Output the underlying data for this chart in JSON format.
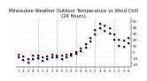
{
  "title": "Milwaukee Weather Outdoor Temperature vs Wind Chill\n(24 Hours)",
  "title_fontsize": 3.8,
  "background_color": "#ffffff",
  "grid_color": "#999999",
  "x_hours": [
    1,
    2,
    3,
    4,
    5,
    6,
    7,
    8,
    9,
    10,
    11,
    12,
    13,
    14,
    15,
    16,
    17,
    18,
    19,
    20,
    21,
    22,
    23,
    24
  ],
  "temp": [
    -5,
    -8,
    -12,
    -7,
    -6,
    -10,
    -8,
    -5,
    -6,
    -7,
    -5,
    -3,
    0,
    5,
    12,
    22,
    35,
    45,
    42,
    38,
    28,
    20,
    18,
    22
  ],
  "wind_chill": [
    -10,
    -14,
    -18,
    -12,
    -11,
    -15,
    -12,
    -9,
    -10,
    -12,
    -9,
    -7,
    -4,
    1,
    7,
    16,
    28,
    38,
    34,
    30,
    19,
    10,
    8,
    13
  ],
  "temp_color": "#cc0000",
  "wind_chill_color": "#0000cc",
  "marker_color": "#000000",
  "ylim": [
    -25,
    55
  ],
  "tick_fontsize": 2.8,
  "yticks": [
    -20,
    -10,
    0,
    10,
    20,
    30,
    40,
    50
  ],
  "grid_positions": [
    5,
    9,
    13,
    17,
    21
  ],
  "marker_size": 1.8,
  "black_marker_size": 1.0
}
